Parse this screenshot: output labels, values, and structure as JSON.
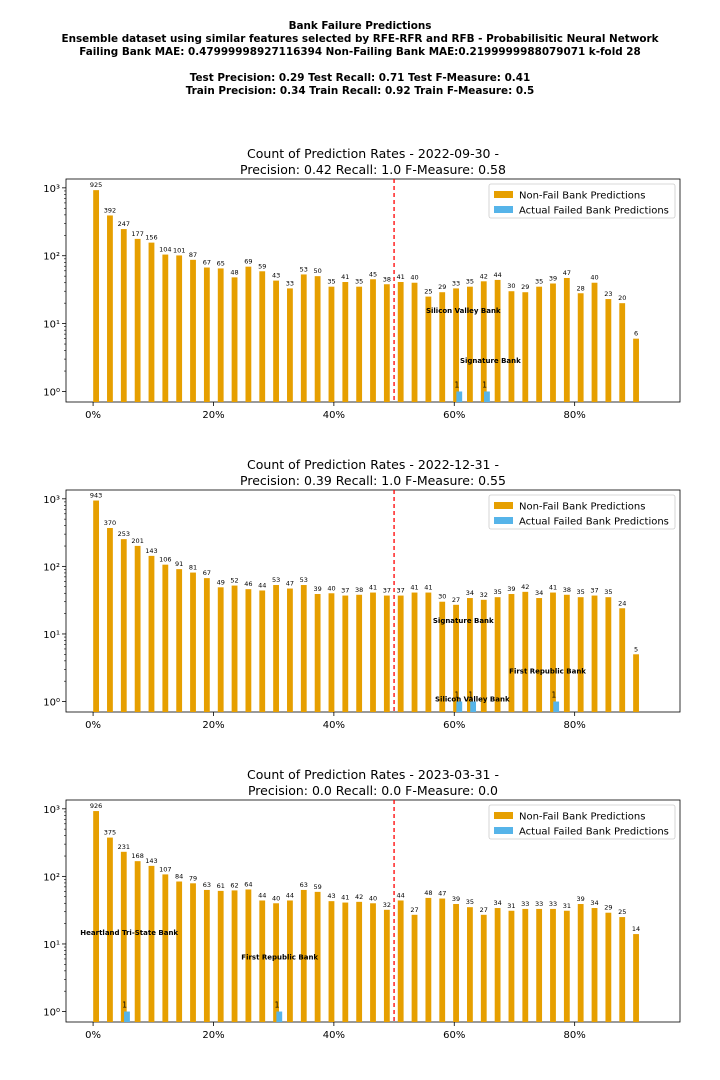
{
  "header": {
    "line1": "Bank Failure Predictions",
    "line2": "Ensemble dataset using similar features selected by RFE-RFR and RFB - Probabilisitic Neural Network",
    "line3": "Failing Bank MAE: 0.47999998927116394 Non-Failing Bank MAE:0.2199999988079071 k-fold 28",
    "line4": "Test Precision: 0.29 Test Recall: 0.71 Test F-Measure: 0.41",
    "line5": "Train Precision: 0.34 Train Recall: 0.92 Train F-Measure: 0.5"
  },
  "colors": {
    "nonfail": "#E69F00",
    "failed": "#56B4E9",
    "threshold": "#FF0000"
  },
  "chart_data": [
    {
      "type": "bar",
      "title_line1": "Count of Prediction Rates - 2022-09-30 -",
      "title_line2": "Precision: 0.42   Recall: 1.0   F-Measure: 0.58",
      "yscale": "log",
      "ylim": [
        0.7,
        1350
      ],
      "xlim": [
        -4.5,
        97.5
      ],
      "xticks": [
        0,
        20,
        40,
        60,
        80
      ],
      "xtick_labels": [
        "0%",
        "20%",
        "40%",
        "60%",
        "80%"
      ],
      "yticks": [
        1,
        10,
        100,
        1000
      ],
      "ytick_labels": [
        "10⁰",
        "10¹",
        "10²",
        "10³"
      ],
      "threshold": 50,
      "legend_position": "top-right",
      "legend": [
        "Non-Fail Bank Predictions",
        "Actual Failed Bank Predictions"
      ],
      "x_start": 0.5,
      "x_step": 2.3,
      "nonfail_values": [
        925,
        392,
        247,
        177,
        156,
        104,
        101,
        87,
        67,
        65,
        48,
        69,
        59,
        43,
        33,
        53,
        50,
        35,
        41,
        35,
        45,
        38,
        41,
        40,
        25,
        29,
        33,
        35,
        42,
        44,
        30,
        29,
        35,
        39,
        47,
        28,
        40,
        23,
        20,
        6
      ],
      "failed": [
        {
          "index": 26,
          "value": 1
        },
        {
          "index": 28,
          "value": 1
        }
      ],
      "annotations": [
        {
          "text": "Silicon Valley Bank",
          "x": 61.5,
          "y": 16
        },
        {
          "text": "Signature Bank",
          "x": 66,
          "y": 2.9
        }
      ]
    },
    {
      "type": "bar",
      "title_line1": "Count of Prediction Rates - 2022-12-31 -",
      "title_line2": "Precision: 0.39   Recall: 1.0   F-Measure: 0.55",
      "yscale": "log",
      "ylim": [
        0.7,
        1350
      ],
      "xlim": [
        -4.5,
        97.5
      ],
      "xticks": [
        0,
        20,
        40,
        60,
        80
      ],
      "xtick_labels": [
        "0%",
        "20%",
        "40%",
        "60%",
        "80%"
      ],
      "yticks": [
        1,
        10,
        100,
        1000
      ],
      "ytick_labels": [
        "10⁰",
        "10¹",
        "10²",
        "10³"
      ],
      "threshold": 50,
      "legend_position": "top-right",
      "legend": [
        "Non-Fail Bank Predictions",
        "Actual Failed Bank Predictions"
      ],
      "x_start": 0.5,
      "x_step": 2.3,
      "nonfail_values": [
        943,
        370,
        253,
        201,
        143,
        106,
        91,
        81,
        67,
        49,
        52,
        46,
        44,
        53,
        47,
        53,
        39,
        40,
        37,
        38,
        41,
        37,
        37,
        41,
        41,
        30,
        27,
        34,
        32,
        35,
        39,
        42,
        34,
        41,
        38,
        35,
        37,
        35,
        24,
        5
      ],
      "failed": [
        {
          "index": 26,
          "value": 1
        },
        {
          "index": 27,
          "value": 1
        },
        {
          "index": 33,
          "value": 1
        }
      ],
      "annotations": [
        {
          "text": "Signature Bank",
          "x": 61.5,
          "y": 16
        },
        {
          "text": "First Republic Bank",
          "x": 75.5,
          "y": 2.9
        },
        {
          "text": "Silicon Valley Bank",
          "x": 63,
          "y": 1.1
        }
      ]
    },
    {
      "type": "bar",
      "title_line1": "Count of Prediction Rates - 2023-03-31 -",
      "title_line2": "Precision: 0.0   Recall: 0.0   F-Measure: 0.0",
      "yscale": "log",
      "ylim": [
        0.7,
        1350
      ],
      "xlim": [
        -4.5,
        97.5
      ],
      "xticks": [
        0,
        20,
        40,
        60,
        80
      ],
      "xtick_labels": [
        "0%",
        "20%",
        "40%",
        "60%",
        "80%"
      ],
      "yticks": [
        1,
        10,
        100,
        1000
      ],
      "ytick_labels": [
        "10⁰",
        "10¹",
        "10²",
        "10³"
      ],
      "threshold": 50,
      "legend_position": "top-right",
      "legend": [
        "Non-Fail Bank Predictions",
        "Actual Failed Bank Predictions"
      ],
      "x_start": 0.5,
      "x_step": 2.3,
      "nonfail_values": [
        926,
        375,
        231,
        168,
        143,
        107,
        84,
        79,
        63,
        61,
        62,
        64,
        44,
        40,
        44,
        63,
        59,
        43,
        41,
        42,
        40,
        32,
        44,
        27,
        48,
        47,
        39,
        35,
        27,
        34,
        31,
        33,
        33,
        33,
        31,
        39,
        34,
        29,
        25,
        14
      ],
      "failed": [
        {
          "index": 2,
          "value": 1
        },
        {
          "index": 13,
          "value": 1
        }
      ],
      "annotations": [
        {
          "text": "Heartland Tri-State Bank",
          "x": 6,
          "y": 15
        },
        {
          "text": "First Republic Bank",
          "x": 31,
          "y": 6.5
        }
      ]
    }
  ]
}
